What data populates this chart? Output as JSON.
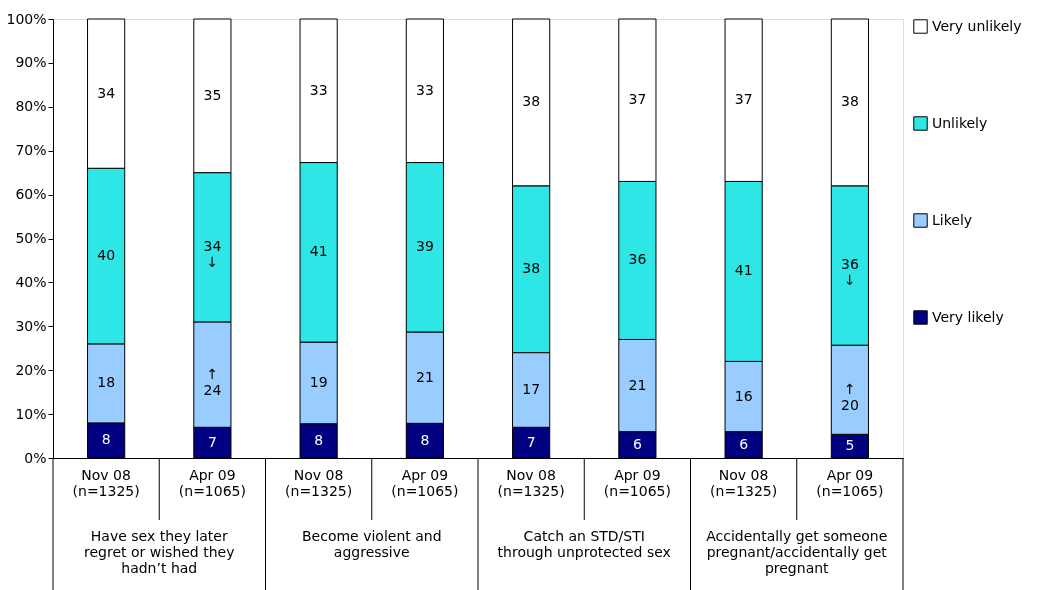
{
  "chart_data": {
    "type": "bar",
    "stacked": true,
    "categories": [
      "Nov 08\n(n=1325)",
      "Apr 09\n(n=1065)",
      "Nov 08\n(n=1325)",
      "Apr 09\n(n=1065)",
      "Nov 08\n(n=1325)",
      "Apr 09\n(n=1065)",
      "Nov 08\n(n=1325)",
      "Apr 09\n(n=1065)"
    ],
    "series": [
      {
        "name": "Very likely",
        "color": "#000080",
        "values": [
          8,
          7,
          7.8,
          7.9,
          7,
          6,
          6,
          5.4
        ],
        "value_labels": [
          "8",
          "7",
          "8",
          "8",
          "7",
          "6",
          "6",
          "5"
        ]
      },
      {
        "name": "Likely",
        "color": "#99ccff",
        "values": [
          18,
          24,
          18.6,
          20.8,
          17,
          21,
          16,
          20.3
        ],
        "value_labels": [
          "18",
          "↑\n24",
          "19",
          "21",
          "17",
          "21",
          "16",
          "↑\n20"
        ]
      },
      {
        "name": "Unlikely",
        "color": "#2ee6e6",
        "values": [
          40,
          34,
          40.9,
          38.6,
          38,
          36,
          41,
          36.3
        ],
        "value_labels": [
          "40",
          "34\n↓",
          "41",
          "39",
          "38",
          "36",
          "41",
          "36\n↓"
        ]
      },
      {
        "name": "Very unlikely",
        "color": "#ffffff",
        "values": [
          34,
          35,
          32.7,
          32.7,
          38,
          37,
          37,
          38.0
        ],
        "value_labels": [
          "34",
          "35",
          "33",
          "33",
          "38",
          "37",
          "37",
          "38"
        ]
      }
    ],
    "ylim": [
      0,
      100
    ],
    "yticks": [
      {
        "value": 0,
        "label": "0%"
      },
      {
        "value": 10,
        "label": "10%"
      },
      {
        "value": 20,
        "label": "20%"
      },
      {
        "value": 30,
        "label": "30%"
      },
      {
        "value": 40,
        "label": "40%"
      },
      {
        "value": 50,
        "label": "50%"
      },
      {
        "value": 60,
        "label": "60%"
      },
      {
        "value": 70,
        "label": "70%"
      },
      {
        "value": 80,
        "label": "80%"
      },
      {
        "value": 90,
        "label": "90%"
      },
      {
        "value": 100,
        "label": "100%"
      }
    ],
    "annotations": [
      "Have sex they later\nregret or wished they\nhadn’t had",
      "Become violent and\naggressive",
      "Catch an STD/STI\nthrough unprotected sex",
      "Accidentally get someone\npregnant/accidentally get\npregnant"
    ],
    "grid": false,
    "legend": "right"
  }
}
